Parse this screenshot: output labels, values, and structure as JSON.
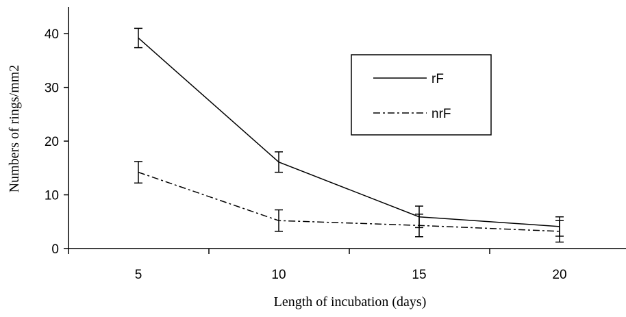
{
  "chart_data": {
    "type": "line",
    "title": "",
    "xlabel": "Length of incubation (days)",
    "ylabel": "Numbers of rings/mm2",
    "x": [
      5,
      10,
      15,
      20
    ],
    "x_ticks": [
      "5",
      "10",
      "15",
      "20"
    ],
    "y_ticks": [
      "0",
      "10",
      "20",
      "30",
      "40"
    ],
    "ylim": [
      0,
      45
    ],
    "grid": false,
    "legend_position": "top-right",
    "series": [
      {
        "name": "rF",
        "line_style": "solid",
        "values": [
          39.2,
          16.1,
          5.9,
          4.1
        ],
        "errors": [
          1.8,
          1.9,
          2.0,
          1.8
        ]
      },
      {
        "name": "nrF",
        "line_style": "dash-dot",
        "values": [
          14.2,
          5.2,
          4.3,
          3.2
        ],
        "errors": [
          2.0,
          2.0,
          2.1,
          2.0
        ]
      }
    ]
  }
}
